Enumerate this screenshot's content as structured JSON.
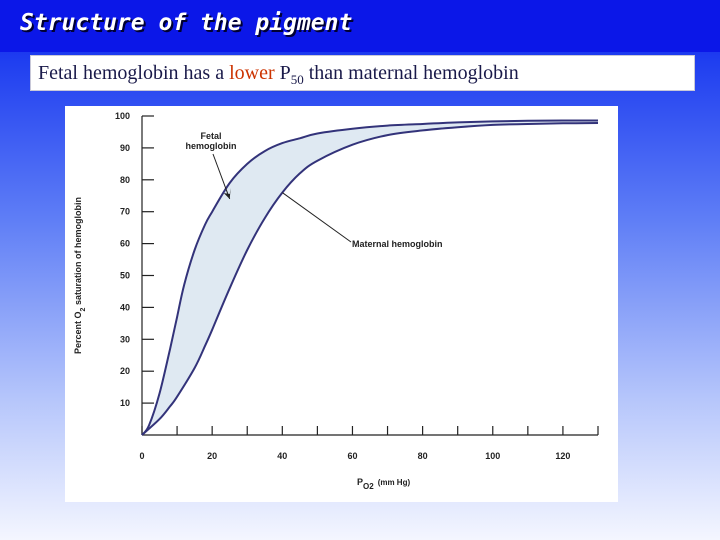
{
  "slide": {
    "title": "Structure of the pigment",
    "subtitle_part1": "Fetal hemoglobin has a ",
    "subtitle_highlight": "lower",
    "subtitle_part2": " P",
    "subtitle_sub": "50",
    "subtitle_part3": " than maternal hemoglobin",
    "highlight_color": "#cc3300",
    "title_bar_color": "#0b17e8"
  },
  "chart_data": {
    "type": "line",
    "xlabel_main": "P",
    "xlabel_sub": "O2",
    "xlabel_unit": "(mm Hg)",
    "ylabel": "Percent O2 saturation of hemoglobin",
    "xlim": [
      0,
      130
    ],
    "ylim": [
      0,
      100
    ],
    "xticks": [
      0,
      20,
      40,
      60,
      80,
      100,
      120
    ],
    "yticks": [
      10,
      20,
      30,
      40,
      50,
      60,
      70,
      80,
      90,
      100
    ],
    "grid": false,
    "fill_between_color": "#dfe9f2",
    "line_color": "#33337a",
    "series": [
      {
        "name": "Fetal hemoglobin",
        "x": [
          0,
          2,
          5,
          8,
          10,
          12,
          15,
          18,
          20,
          25,
          30,
          35,
          40,
          45,
          50,
          60,
          70,
          80,
          90,
          100,
          110,
          120,
          130
        ],
        "y": [
          0,
          3,
          13,
          27,
          37,
          47,
          58,
          66,
          70,
          79,
          85,
          89,
          91.5,
          93,
          94.5,
          96,
          97,
          97.5,
          98,
          98.3,
          98.5,
          98.6,
          98.6
        ]
      },
      {
        "name": "Maternal hemoglobin",
        "x": [
          0,
          5,
          8,
          10,
          15,
          18,
          20,
          25,
          30,
          35,
          40,
          45,
          50,
          60,
          70,
          80,
          90,
          100,
          110,
          120,
          130
        ],
        "y": [
          0,
          5,
          9,
          12,
          21,
          28,
          33,
          46,
          58,
          68,
          76,
          82,
          86,
          91,
          94,
          95.5,
          96.5,
          97.2,
          97.5,
          97.7,
          97.8
        ]
      }
    ],
    "annotations": [
      {
        "lines": [
          "Fetal",
          "hemoglobin"
        ],
        "point": [
          25,
          74
        ]
      },
      {
        "lines": [
          "Maternal hemoglobin"
        ],
        "point": [
          40,
          76
        ]
      }
    ]
  }
}
